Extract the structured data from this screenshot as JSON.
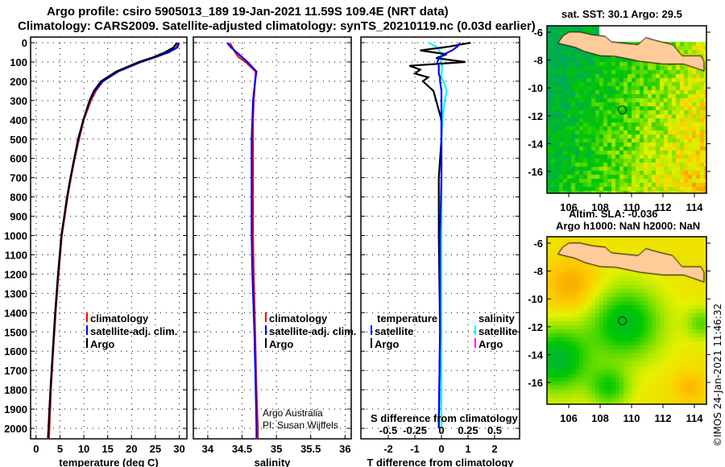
{
  "header": {
    "title1": "Argo profile: csiro 5905013_189 19-Jan-2021 11.59S 109.4E (NRT data)",
    "title2": "Climatology: CARS2009. Satellite-adjusted climatology: synTS_20210119.nc (0.03d earlier)"
  },
  "colors": {
    "climatology": "#ff0000",
    "satellite": "#0000ff",
    "argo": "#000000",
    "sal_satellite": "#00ffff",
    "sal_argo": "#ff00ff"
  },
  "chart_data": [
    {
      "type": "line",
      "name": "temperature",
      "xlabel": "temperature (deg C)",
      "xlim": [
        -1.5,
        31.5
      ],
      "xticks": [
        0,
        5,
        10,
        15,
        20,
        25,
        30
      ],
      "ylim": [
        0,
        2060
      ],
      "yticks": [
        0,
        100,
        200,
        300,
        400,
        500,
        600,
        700,
        800,
        900,
        1000,
        1100,
        1200,
        1300,
        1400,
        1500,
        1600,
        1700,
        1800,
        1900,
        2000
      ],
      "depth": [
        0,
        25,
        50,
        75,
        100,
        150,
        200,
        250,
        300,
        400,
        500,
        600,
        700,
        800,
        900,
        1000,
        1200,
        1400,
        1600,
        1800,
        2000,
        2050
      ],
      "series": [
        {
          "name": "climatology",
          "values": [
            29.8,
            29.4,
            27.5,
            25,
            22,
            17,
            14,
            12.5,
            11.5,
            10,
            9,
            8.1,
            7.3,
            6.6,
            6,
            5.4,
            4.7,
            4.1,
            3.6,
            3.1,
            2.8,
            2.7
          ]
        },
        {
          "name": "satellite-adj. clim.",
          "values": [
            30,
            29.6,
            27.8,
            25,
            22,
            17.2,
            14,
            12.3,
            11.3,
            9.9,
            8.9,
            8,
            7.2,
            6.5,
            5.9,
            5.3,
            4.6,
            4,
            3.5,
            3,
            2.6,
            2.5
          ]
        },
        {
          "name": "Argo",
          "values": [
            29.5,
            28.8,
            27,
            24.6,
            21.5,
            16.8,
            13.6,
            12.1,
            11.2,
            9.9,
            8.8,
            8,
            7.2,
            6.5,
            5.9,
            5.3,
            4.6,
            4,
            3.5,
            3,
            2.6,
            2.5
          ]
        }
      ],
      "legend": [
        "climatology",
        "satellite-adj. clim.",
        "Argo"
      ]
    },
    {
      "type": "line",
      "name": "salinity",
      "xlabel": "salinity",
      "xlim": [
        33.8,
        36.1
      ],
      "xticks": [
        34,
        34.5,
        35,
        35.5,
        36
      ],
      "ylim": [
        0,
        2060
      ],
      "depth": [
        0,
        25,
        50,
        75,
        100,
        150,
        200,
        300,
        400,
        500,
        700,
        1000,
        1200,
        1500,
        1800,
        2000,
        2050
      ],
      "series": [
        {
          "name": "climatology",
          "values": [
            34.32,
            34.36,
            34.4,
            34.45,
            34.55,
            34.7,
            34.69,
            34.67,
            34.66,
            34.66,
            34.66,
            34.66,
            34.67,
            34.69,
            34.71,
            34.73,
            34.73
          ]
        },
        {
          "name": "satellite-adj. clim.",
          "values": [
            34.28,
            34.34,
            34.42,
            34.5,
            34.58,
            34.71,
            34.69,
            34.66,
            34.65,
            34.64,
            34.64,
            34.64,
            34.65,
            34.68,
            34.7,
            34.71,
            34.71
          ]
        }
      ],
      "legend": [
        "climatology",
        "satellite-adj. clim.",
        "Argo"
      ],
      "annotation": [
        "Argo Australia",
        "PI: Susan Wijffels"
      ]
    },
    {
      "type": "line",
      "name": "difference",
      "xlabel": "T difference from climatology",
      "xlim": [
        -3,
        3
      ],
      "xticks": [
        -2,
        -1,
        0,
        1,
        2
      ],
      "s_label": "S difference from climatology",
      "s_xticks": [
        "-0.5",
        "-0.25",
        "0",
        "0.25",
        "0.5"
      ],
      "depth": [
        0,
        20,
        40,
        60,
        80,
        100,
        120,
        140,
        160,
        180,
        200,
        250,
        300,
        400,
        500,
        700,
        1000,
        1500,
        2000
      ],
      "series": [
        {
          "name": "T satellite",
          "values": [
            0.7,
            0.6,
            0.4,
            0.1,
            -0.1,
            -0.15,
            -0.1,
            -0.1,
            -0.1,
            -0.05,
            -0.05,
            0,
            0,
            0,
            0,
            0,
            -0.05,
            -0.05,
            -0.1
          ]
        },
        {
          "name": "T Argo",
          "values": [
            1.1,
            0.3,
            -0.8,
            0.2,
            -0.2,
            0.9,
            -1.2,
            -0.8,
            -1.0,
            -0.5,
            -0.7,
            -0.3,
            -0.2,
            0,
            0,
            -0.1,
            -0.1,
            -0.05,
            -0.1
          ]
        },
        {
          "name": "S satellite",
          "values": [
            -0.12,
            -0.05,
            -0.02,
            0,
            0,
            0,
            0.01,
            0.01,
            0,
            0,
            0.02,
            0.05,
            0.03,
            0.01,
            0,
            0,
            0,
            0,
            0
          ]
        }
      ],
      "legend_t": {
        "title": "temperature",
        "items": [
          "satellite",
          "Argo"
        ]
      },
      "legend_s": {
        "title": "salinity",
        "items": [
          "satellite",
          "Argo"
        ]
      }
    }
  ],
  "maps": [
    {
      "title": "sat. SST: 30.1 Argo: 29.5",
      "xticks": [
        "106",
        "108",
        "110",
        "112",
        "114"
      ],
      "yticks": [
        "-6",
        "-8",
        "-10",
        "-12",
        "-14",
        "-16"
      ]
    },
    {
      "title1": "Altim. SLA: -0.036",
      "title2": "Argo h1000: NaN h2000: NaN",
      "xticks": [
        "106",
        "108",
        "110",
        "112",
        "114"
      ],
      "yticks": [
        "-6",
        "-8",
        "-10",
        "-12",
        "-14",
        "-16"
      ]
    }
  ],
  "float_position": {
    "lon": 109.4,
    "lat": -11.59
  },
  "stamp": "©IMOS 24-Jan-2021 11:46:32"
}
